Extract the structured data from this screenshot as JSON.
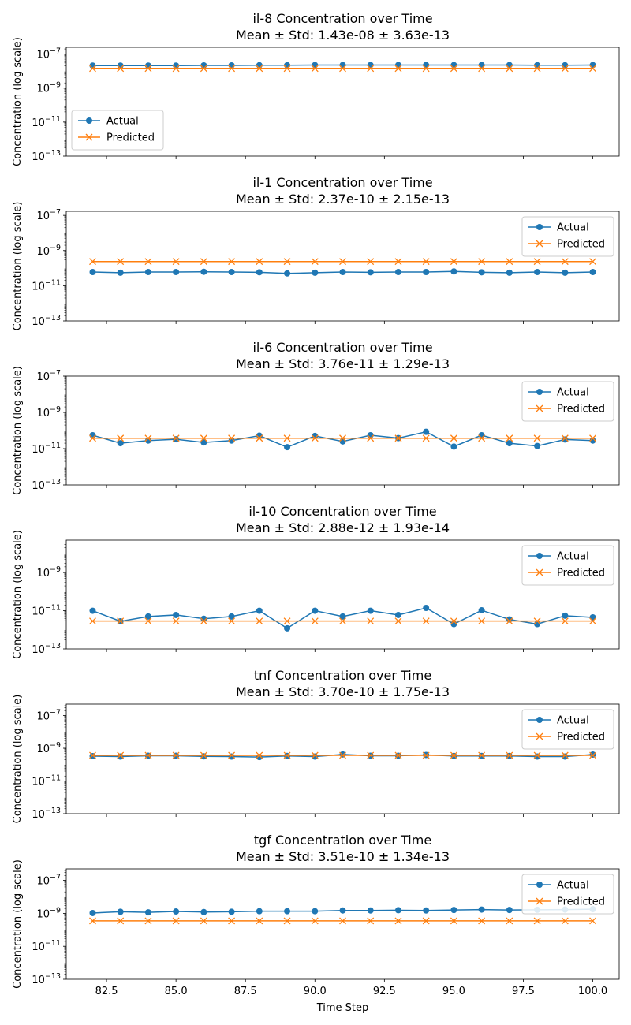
{
  "figure": {
    "shared_xlabel": "Time Step",
    "x_tick_labels": [
      "82.5",
      "85.0",
      "87.5",
      "90.0",
      "92.5",
      "95.0",
      "97.5",
      "100.0"
    ]
  },
  "colors": {
    "actual": "#1f77b4",
    "predicted": "#ff7f0e"
  },
  "chart_data": [
    {
      "type": "line",
      "title": "il-8 Concentration over Time",
      "subtitle": "Mean ± Std: 1.43e-08 ± 3.63e-13",
      "xlabel": "",
      "ylabel": "Concentration (log scale)",
      "yscale": "log",
      "ylim": [
        1e-13,
        2.5e-07
      ],
      "xlim": [
        81.05,
        100.95
      ],
      "yticks": [
        {
          "value": 1e-13,
          "base": "10",
          "exp": "−13"
        },
        {
          "value": 1e-11,
          "base": "10",
          "exp": "−11"
        },
        {
          "value": 1e-09,
          "base": "10",
          "exp": "−9"
        },
        {
          "value": 1e-07,
          "base": "10",
          "exp": "−7"
        }
      ],
      "legend_position": "lower-left",
      "x": [
        82,
        83,
        84,
        85,
        86,
        87,
        88,
        89,
        90,
        91,
        92,
        93,
        94,
        95,
        96,
        97,
        98,
        99,
        100
      ],
      "series": [
        {
          "name": "Actual",
          "marker": "o",
          "values": [
            2.1e-08,
            2.1e-08,
            2.1e-08,
            2.1e-08,
            2.15e-08,
            2.15e-08,
            2.2e-08,
            2.2e-08,
            2.25e-08,
            2.25e-08,
            2.25e-08,
            2.25e-08,
            2.25e-08,
            2.25e-08,
            2.25e-08,
            2.25e-08,
            2.2e-08,
            2.2e-08,
            2.25e-08
          ]
        },
        {
          "name": "Predicted",
          "marker": "x",
          "values": [
            1.43e-08,
            1.43e-08,
            1.43e-08,
            1.43e-08,
            1.43e-08,
            1.43e-08,
            1.43e-08,
            1.43e-08,
            1.43e-08,
            1.43e-08,
            1.43e-08,
            1.43e-08,
            1.43e-08,
            1.43e-08,
            1.43e-08,
            1.43e-08,
            1.43e-08,
            1.43e-08,
            1.43e-08
          ]
        }
      ]
    },
    {
      "type": "line",
      "title": "il-1 Concentration over Time",
      "subtitle": "Mean ± Std: 2.37e-10 ± 2.15e-13",
      "xlabel": "",
      "ylabel": "Concentration (log scale)",
      "yscale": "log",
      "ylim": [
        1e-13,
        1.7e-07
      ],
      "xlim": [
        81.05,
        100.95
      ],
      "yticks": [
        {
          "value": 1e-13,
          "base": "10",
          "exp": "−13"
        },
        {
          "value": 1e-11,
          "base": "10",
          "exp": "−11"
        },
        {
          "value": 1e-09,
          "base": "10",
          "exp": "−9"
        },
        {
          "value": 1e-07,
          "base": "10",
          "exp": "−7"
        }
      ],
      "legend_position": "top-right",
      "x": [
        82,
        83,
        84,
        85,
        86,
        87,
        88,
        89,
        90,
        91,
        92,
        93,
        94,
        95,
        96,
        97,
        98,
        99,
        100
      ],
      "series": [
        {
          "name": "Actual",
          "marker": "o",
          "values": [
            6e-11,
            5.5e-11,
            6e-11,
            6e-11,
            6.2e-11,
            6e-11,
            5.8e-11,
            5e-11,
            5.5e-11,
            6e-11,
            5.8e-11,
            6e-11,
            6e-11,
            6.5e-11,
            5.8e-11,
            5.5e-11,
            6e-11,
            5.5e-11,
            6e-11
          ]
        },
        {
          "name": "Predicted",
          "marker": "x",
          "values": [
            2.37e-10,
            2.37e-10,
            2.37e-10,
            2.37e-10,
            2.37e-10,
            2.37e-10,
            2.37e-10,
            2.37e-10,
            2.37e-10,
            2.37e-10,
            2.37e-10,
            2.37e-10,
            2.37e-10,
            2.37e-10,
            2.37e-10,
            2.37e-10,
            2.37e-10,
            2.37e-10,
            2.37e-10
          ]
        }
      ]
    },
    {
      "type": "line",
      "title": "il-6 Concentration over Time",
      "subtitle": "Mean ± Std: 3.76e-11 ± 1.29e-13",
      "xlabel": "",
      "ylabel": "Concentration (log scale)",
      "yscale": "log",
      "ylim": [
        1e-13,
        1e-07
      ],
      "xlim": [
        81.05,
        100.95
      ],
      "yticks": [
        {
          "value": 1e-13,
          "base": "10",
          "exp": "−13"
        },
        {
          "value": 1e-11,
          "base": "10",
          "exp": "−11"
        },
        {
          "value": 1e-09,
          "base": "10",
          "exp": "−9"
        },
        {
          "value": 1e-07,
          "base": "10",
          "exp": "−7"
        }
      ],
      "legend_position": "top-right",
      "x": [
        82,
        83,
        84,
        85,
        86,
        87,
        88,
        89,
        90,
        91,
        92,
        93,
        94,
        95,
        96,
        97,
        98,
        99,
        100
      ],
      "series": [
        {
          "name": "Actual",
          "marker": "o",
          "values": [
            5.5e-11,
            2e-11,
            2.8e-11,
            3.3e-11,
            2.2e-11,
            2.8e-11,
            5.2e-11,
            1.2e-11,
            5e-11,
            2.5e-11,
            5.5e-11,
            3.8e-11,
            8.5e-11,
            1.3e-11,
            5.5e-11,
            2e-11,
            1.4e-11,
            3.2e-11,
            2.8e-11
          ]
        },
        {
          "name": "Predicted",
          "marker": "x",
          "values": [
            3.76e-11,
            3.76e-11,
            3.76e-11,
            3.76e-11,
            3.76e-11,
            3.76e-11,
            3.76e-11,
            3.76e-11,
            3.76e-11,
            3.76e-11,
            3.76e-11,
            3.76e-11,
            3.76e-11,
            3.76e-11,
            3.76e-11,
            3.76e-11,
            3.76e-11,
            3.76e-11,
            3.76e-11
          ]
        }
      ]
    },
    {
      "type": "line",
      "title": "il-10 Concentration over Time",
      "subtitle": "Mean ± Std: 2.88e-12 ± 1.93e-14",
      "xlabel": "",
      "ylabel": "Concentration (log scale)",
      "yscale": "log",
      "ylim": [
        1e-13,
        5e-08
      ],
      "xlim": [
        81.05,
        100.95
      ],
      "yticks": [
        {
          "value": 1e-13,
          "base": "10",
          "exp": "−13"
        },
        {
          "value": 1e-11,
          "base": "10",
          "exp": "−11"
        },
        {
          "value": 1e-09,
          "base": "10",
          "exp": "−9"
        }
      ],
      "legend_position": "top-right",
      "x": [
        82,
        83,
        84,
        85,
        86,
        87,
        88,
        89,
        90,
        91,
        92,
        93,
        94,
        95,
        96,
        97,
        98,
        99,
        100
      ],
      "series": [
        {
          "name": "Actual",
          "marker": "o",
          "values": [
            1e-11,
            2.8e-12,
            5e-12,
            6e-12,
            3.8e-12,
            5e-12,
            1e-11,
            1.2e-12,
            1e-11,
            5e-12,
            1e-11,
            6e-12,
            1.4e-11,
            2e-12,
            1.05e-11,
            3.5e-12,
            2e-12,
            5.5e-12,
            4.5e-12
          ]
        },
        {
          "name": "Predicted",
          "marker": "x",
          "values": [
            2.88e-12,
            2.88e-12,
            2.88e-12,
            2.88e-12,
            2.88e-12,
            2.88e-12,
            2.88e-12,
            2.88e-12,
            2.88e-12,
            2.88e-12,
            2.88e-12,
            2.88e-12,
            2.88e-12,
            2.88e-12,
            2.88e-12,
            2.88e-12,
            2.88e-12,
            2.88e-12,
            2.88e-12
          ]
        }
      ]
    },
    {
      "type": "line",
      "title": "tnf Concentration over Time",
      "subtitle": "Mean ± Std: 3.70e-10 ± 1.75e-13",
      "xlabel": "",
      "ylabel": "Concentration (log scale)",
      "yscale": "log",
      "ylim": [
        1e-13,
        5e-07
      ],
      "xlim": [
        81.05,
        100.95
      ],
      "yticks": [
        {
          "value": 1e-13,
          "base": "10",
          "exp": "−13"
        },
        {
          "value": 1e-11,
          "base": "10",
          "exp": "−11"
        },
        {
          "value": 1e-09,
          "base": "10",
          "exp": "−9"
        },
        {
          "value": 1e-07,
          "base": "10",
          "exp": "−7"
        }
      ],
      "legend_position": "top-right",
      "x": [
        82,
        83,
        84,
        85,
        86,
        87,
        88,
        89,
        90,
        91,
        92,
        93,
        94,
        95,
        96,
        97,
        98,
        99,
        100
      ],
      "series": [
        {
          "name": "Actual",
          "marker": "o",
          "values": [
            3.3e-10,
            3.1e-10,
            3.5e-10,
            3.5e-10,
            3.2e-10,
            3.1e-10,
            2.9e-10,
            3.4e-10,
            3.1e-10,
            4.2e-10,
            3.5e-10,
            3.5e-10,
            3.9e-10,
            3.4e-10,
            3.4e-10,
            3.4e-10,
            3.1e-10,
            3.1e-10,
            4.1e-10
          ]
        },
        {
          "name": "Predicted",
          "marker": "x",
          "values": [
            3.7e-10,
            3.7e-10,
            3.7e-10,
            3.7e-10,
            3.7e-10,
            3.7e-10,
            3.7e-10,
            3.7e-10,
            3.7e-10,
            3.7e-10,
            3.7e-10,
            3.7e-10,
            3.7e-10,
            3.7e-10,
            3.7e-10,
            3.7e-10,
            3.7e-10,
            3.7e-10,
            3.7e-10
          ]
        }
      ]
    },
    {
      "type": "line",
      "title": "tgf Concentration over Time",
      "subtitle": "Mean ± Std: 3.51e-10 ± 1.34e-13",
      "xlabel": "Time Step",
      "ylabel": "Concentration (log scale)",
      "yscale": "log",
      "ylim": [
        1e-13,
        5e-07
      ],
      "xlim": [
        81.05,
        100.95
      ],
      "yticks": [
        {
          "value": 1e-13,
          "base": "10",
          "exp": "−13"
        },
        {
          "value": 1e-11,
          "base": "10",
          "exp": "−11"
        },
        {
          "value": 1e-09,
          "base": "10",
          "exp": "−9"
        },
        {
          "value": 1e-07,
          "base": "10",
          "exp": "−7"
        }
      ],
      "legend_position": "top-right",
      "x": [
        82,
        83,
        84,
        85,
        86,
        87,
        88,
        89,
        90,
        91,
        92,
        93,
        94,
        95,
        96,
        97,
        98,
        99,
        100
      ],
      "series": [
        {
          "name": "Actual",
          "marker": "o",
          "values": [
            1.05e-09,
            1.25e-09,
            1.15e-09,
            1.3e-09,
            1.2e-09,
            1.25e-09,
            1.35e-09,
            1.35e-09,
            1.35e-09,
            1.5e-09,
            1.5e-09,
            1.55e-09,
            1.5e-09,
            1.6e-09,
            1.7e-09,
            1.6e-09,
            1.65e-09,
            1.7e-09,
            1.8e-09
          ]
        },
        {
          "name": "Predicted",
          "marker": "x",
          "values": [
            3.51e-10,
            3.51e-10,
            3.51e-10,
            3.51e-10,
            3.51e-10,
            3.51e-10,
            3.51e-10,
            3.51e-10,
            3.51e-10,
            3.51e-10,
            3.51e-10,
            3.51e-10,
            3.51e-10,
            3.51e-10,
            3.51e-10,
            3.51e-10,
            3.51e-10,
            3.51e-10,
            3.51e-10
          ]
        }
      ]
    }
  ]
}
